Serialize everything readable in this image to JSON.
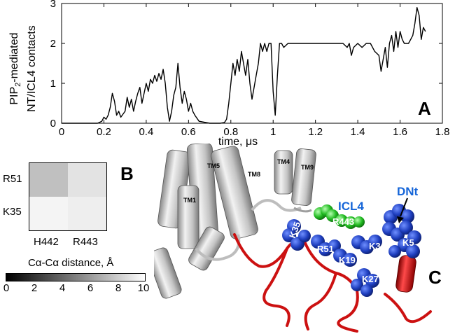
{
  "panelA": {
    "letter": "A",
    "ylabel_line1": "PIP",
    "ylabel_sub": "2",
    "ylabel_line1_rest": "-mediated",
    "ylabel_line2": "NT/ICL4 contacts",
    "xlabel": "time, μs"
  },
  "panelB": {
    "letter": "B",
    "row_labels": [
      "R51",
      "K35"
    ],
    "col_labels": [
      "H442",
      "R443"
    ],
    "cell_colors": [
      [
        "#c0c0c0",
        "#e3e3e3"
      ],
      [
        "#f4f4f4",
        "#eeeeee"
      ]
    ],
    "colorbar_title": "Cα-Cα distance, Å",
    "colorbar_ticks": [
      "0",
      "2",
      "4",
      "6",
      "8",
      "10"
    ]
  },
  "panelC": {
    "letter": "C",
    "helix_labels": [
      "TM5",
      "TM8",
      "TM4",
      "TM9",
      "TM1"
    ],
    "region_labels": [
      "ICL4",
      "DNt"
    ],
    "residue_labels": [
      "R443",
      "K35",
      "R51",
      "K3",
      "K5",
      "K19",
      "K27"
    ]
  },
  "colors": {
    "line": "#000000",
    "icl4": "#22bb22",
    "dnt": "#1565d8",
    "nt_loop": "#cc1111",
    "residue_sphere": "#1f3fbf",
    "protein_gray": "#c8c8c8"
  },
  "chart_data": {
    "type": "line",
    "title": "",
    "xlabel": "time, μs",
    "ylabel": "PIP2-mediated NT/ICL4 contacts",
    "xlim": [
      0,
      1.8
    ],
    "ylim": [
      0,
      3
    ],
    "xticks": [
      0,
      0.2,
      0.4,
      0.6,
      0.8,
      1,
      1.2,
      1.4,
      1.6,
      1.8
    ],
    "yticks": [
      0,
      1,
      2,
      3
    ],
    "grid": false,
    "series": [
      {
        "x": [
          0,
          0.17,
          0.19,
          0.2,
          0.21,
          0.22,
          0.23,
          0.24,
          0.25,
          0.26,
          0.27,
          0.28,
          0.3,
          0.31,
          0.32,
          0.33,
          0.34,
          0.35,
          0.36,
          0.37,
          0.38,
          0.4,
          0.41,
          0.42,
          0.43,
          0.44,
          0.45,
          0.46,
          0.47,
          0.48,
          0.49,
          0.5,
          0.51,
          0.52,
          0.53,
          0.54,
          0.55,
          0.56,
          0.57,
          0.58,
          0.59,
          0.6,
          0.61,
          0.62,
          0.63,
          0.65,
          0.7,
          0.75,
          0.77,
          0.78,
          0.79,
          0.8,
          0.81,
          0.82,
          0.83,
          0.84,
          0.85,
          0.86,
          0.87,
          0.88,
          0.89,
          0.9,
          0.91,
          0.92,
          0.93,
          0.94,
          0.95,
          0.96,
          0.97,
          0.98,
          0.99,
          1.0,
          1.01,
          1.02,
          1.03,
          1.04,
          1.05,
          1.07,
          1.1,
          1.15,
          1.2,
          1.25,
          1.3,
          1.33,
          1.35,
          1.36,
          1.37,
          1.38,
          1.4,
          1.42,
          1.44,
          1.46,
          1.48,
          1.5,
          1.51,
          1.52,
          1.53,
          1.54,
          1.55,
          1.56,
          1.57,
          1.58,
          1.59,
          1.6,
          1.61,
          1.62,
          1.63,
          1.64,
          1.65,
          1.66,
          1.67,
          1.68,
          1.69,
          1.7,
          1.71,
          1.72
        ],
        "y": [
          0,
          0,
          0.05,
          0.15,
          0.1,
          0.2,
          0.4,
          0.75,
          0.55,
          0.2,
          0.3,
          0.15,
          0.3,
          0.65,
          0.4,
          0.6,
          0.3,
          0.55,
          0.75,
          0.9,
          0.5,
          1.0,
          0.8,
          1.1,
          1.0,
          1.2,
          1.05,
          1.25,
          1.1,
          1.35,
          1.0,
          0.4,
          0.05,
          0.3,
          0.7,
          0.9,
          1.5,
          0.9,
          0.5,
          0.8,
          0.6,
          0.3,
          0.5,
          0.3,
          0.2,
          0.05,
          0,
          0,
          0.02,
          0.1,
          0.5,
          1.0,
          1.5,
          1.2,
          1.6,
          1.3,
          1.8,
          1.5,
          1.2,
          1.6,
          1.0,
          0.6,
          0.9,
          1.2,
          1.5,
          2.0,
          1.8,
          2.0,
          1.8,
          2.0,
          2.0,
          0.8,
          0.2,
          1.2,
          2.0,
          2.0,
          1.9,
          2.0,
          2.0,
          2.0,
          2.0,
          2.0,
          2.0,
          2.0,
          1.9,
          2.0,
          1.7,
          1.9,
          2.0,
          1.9,
          2.0,
          2.0,
          1.8,
          1.7,
          1.3,
          1.6,
          1.9,
          1.4,
          2.0,
          2.2,
          1.8,
          2.3,
          1.9,
          2.3,
          2.1,
          2.0,
          2.0,
          2.0,
          2.1,
          2.2,
          2.5,
          2.9,
          2.7,
          2.1,
          2.4,
          2.3
        ]
      }
    ]
  }
}
